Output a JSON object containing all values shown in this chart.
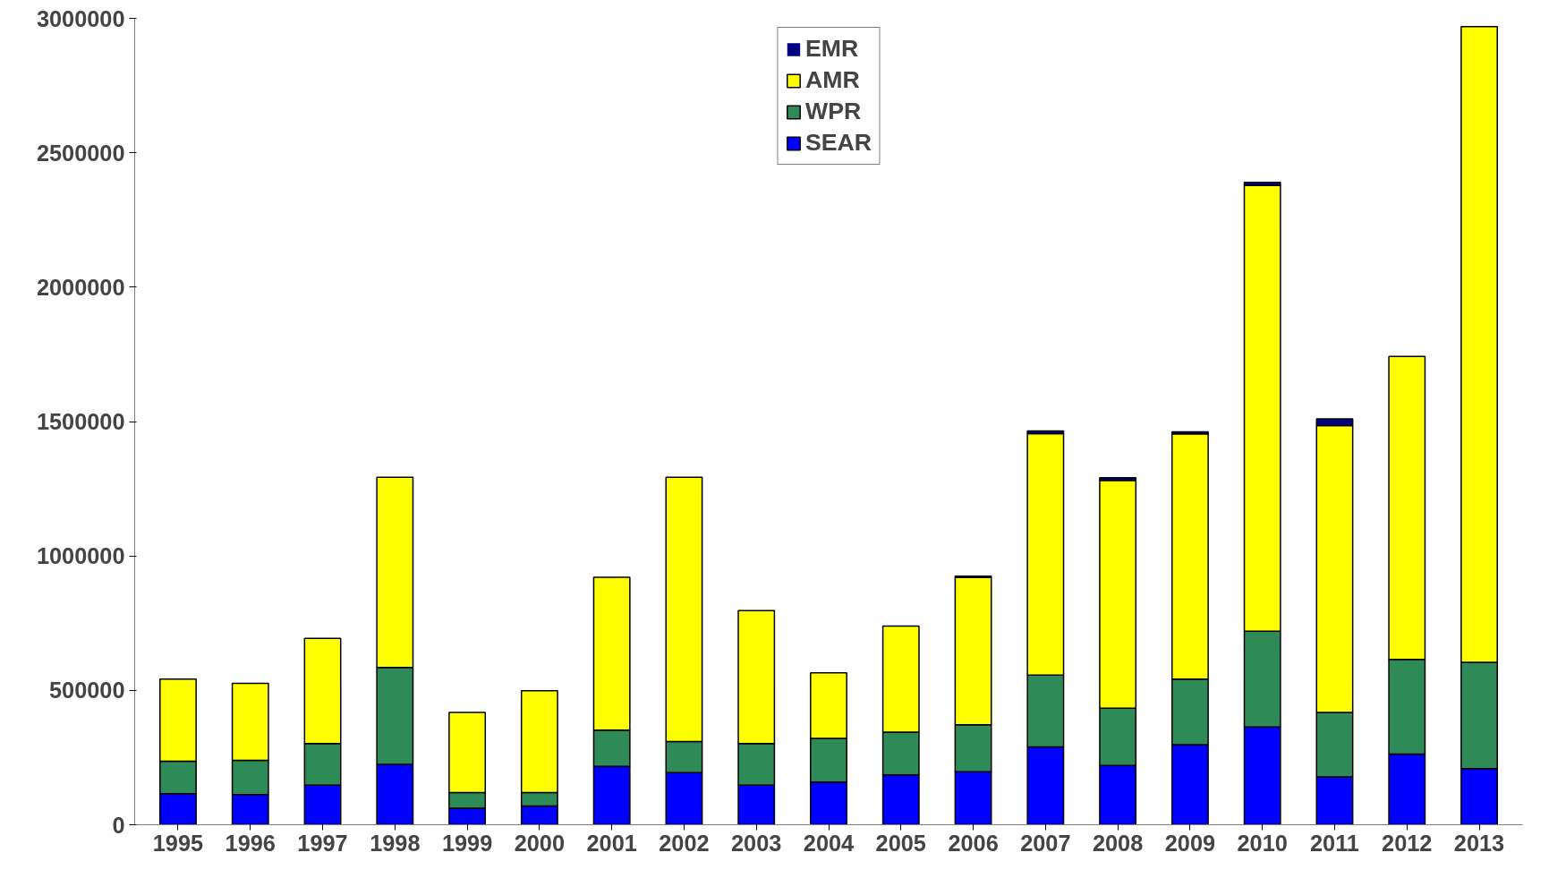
{
  "chart_data": {
    "type": "bar",
    "stacked": true,
    "categories": [
      "1995",
      "1996",
      "1997",
      "1998",
      "1999",
      "2000",
      "2001",
      "2002",
      "2003",
      "2004",
      "2005",
      "2006",
      "2007",
      "2008",
      "2009",
      "2010",
      "2011",
      "2012",
      "2013"
    ],
    "series": [
      {
        "name": "SEAR",
        "color": "#0000ff",
        "values": [
          116000,
          112000,
          147000,
          225000,
          62000,
          70000,
          217000,
          194000,
          147000,
          159000,
          186000,
          197000,
          290000,
          221000,
          298000,
          364000,
          178000,
          263000,
          209000
        ]
      },
      {
        "name": "WPR",
        "color": "#2e8b57",
        "values": [
          120000,
          128000,
          155000,
          360000,
          58000,
          50000,
          135000,
          116000,
          155000,
          162000,
          159000,
          175000,
          267000,
          213000,
          244000,
          356000,
          240000,
          352000,
          395000
        ]
      },
      {
        "name": "AMR",
        "color": "#ffff00",
        "values": [
          306000,
          286000,
          391000,
          708000,
          298000,
          379000,
          569000,
          983000,
          495000,
          244000,
          394000,
          548000,
          898000,
          847000,
          912000,
          1658000,
          1067000,
          1127000,
          2365000
        ]
      },
      {
        "name": "EMR",
        "color": "#000080",
        "values": [
          0,
          0,
          0,
          0,
          0,
          0,
          0,
          0,
          0,
          0,
          0,
          5000,
          10000,
          10000,
          8000,
          12000,
          25000,
          0,
          0
        ]
      }
    ],
    "ylim": [
      0,
      3000000
    ],
    "yticks": [
      0,
      500000,
      1000000,
      1500000,
      2000000,
      2500000,
      3000000
    ],
    "grid": false,
    "legend": "top"
  }
}
